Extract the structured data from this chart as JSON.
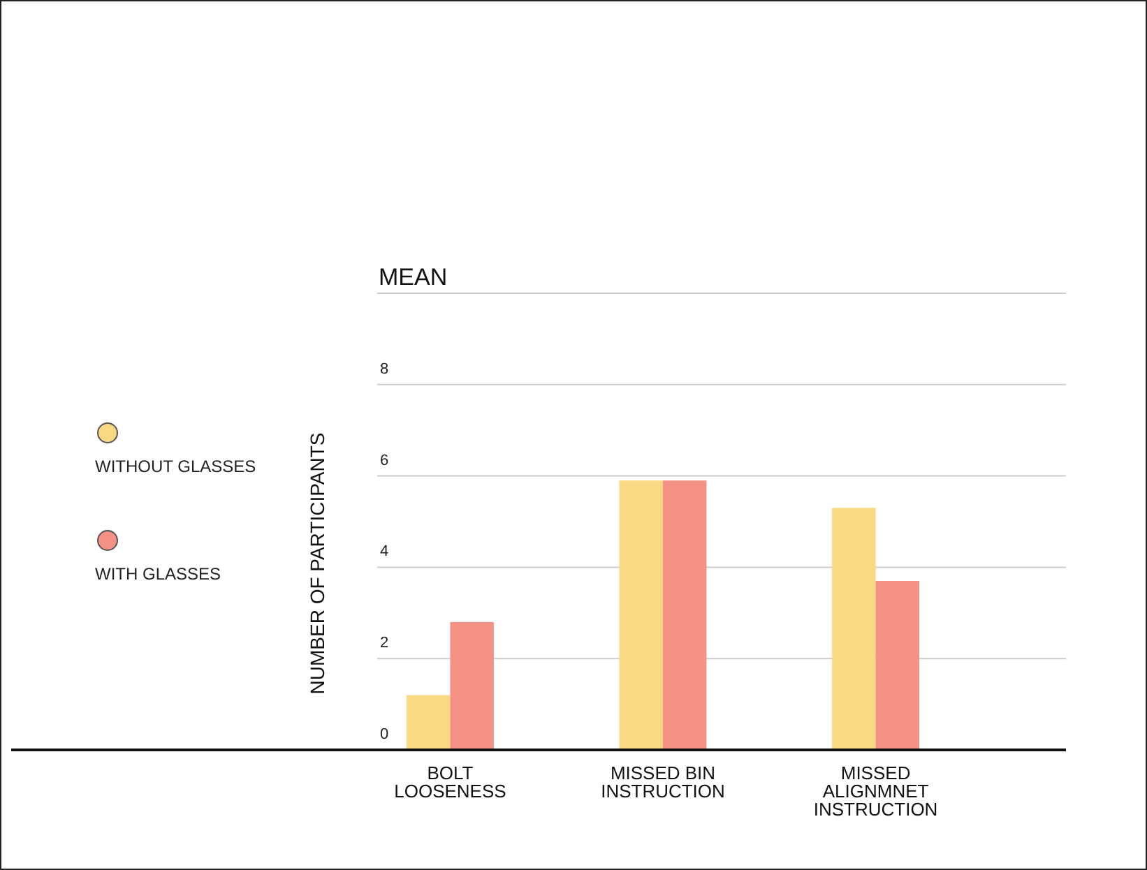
{
  "chart_data": {
    "type": "bar",
    "title": "MEAN",
    "ylabel": "NUMBER OF PARTICIPANTS",
    "categories": [
      "BOLT\nLOOSENESS",
      "MISSED BIN\nINSTRUCTION",
      "MISSED\nALIGNMNET\nINSTRUCTION"
    ],
    "series": [
      {
        "name": "WITHOUT GLASSES",
        "color": "#fad984",
        "values": [
          1.2,
          5.9,
          5.3
        ]
      },
      {
        "name": "WITH GLASSES",
        "color": "#f49185",
        "values": [
          2.8,
          5.9,
          3.7
        ]
      }
    ],
    "ylim": [
      0,
      10
    ],
    "yticks": [
      0,
      2,
      4,
      6,
      8,
      {
        "value": 10,
        "label": null
      }
    ],
    "grid": "y",
    "legend": "left"
  }
}
